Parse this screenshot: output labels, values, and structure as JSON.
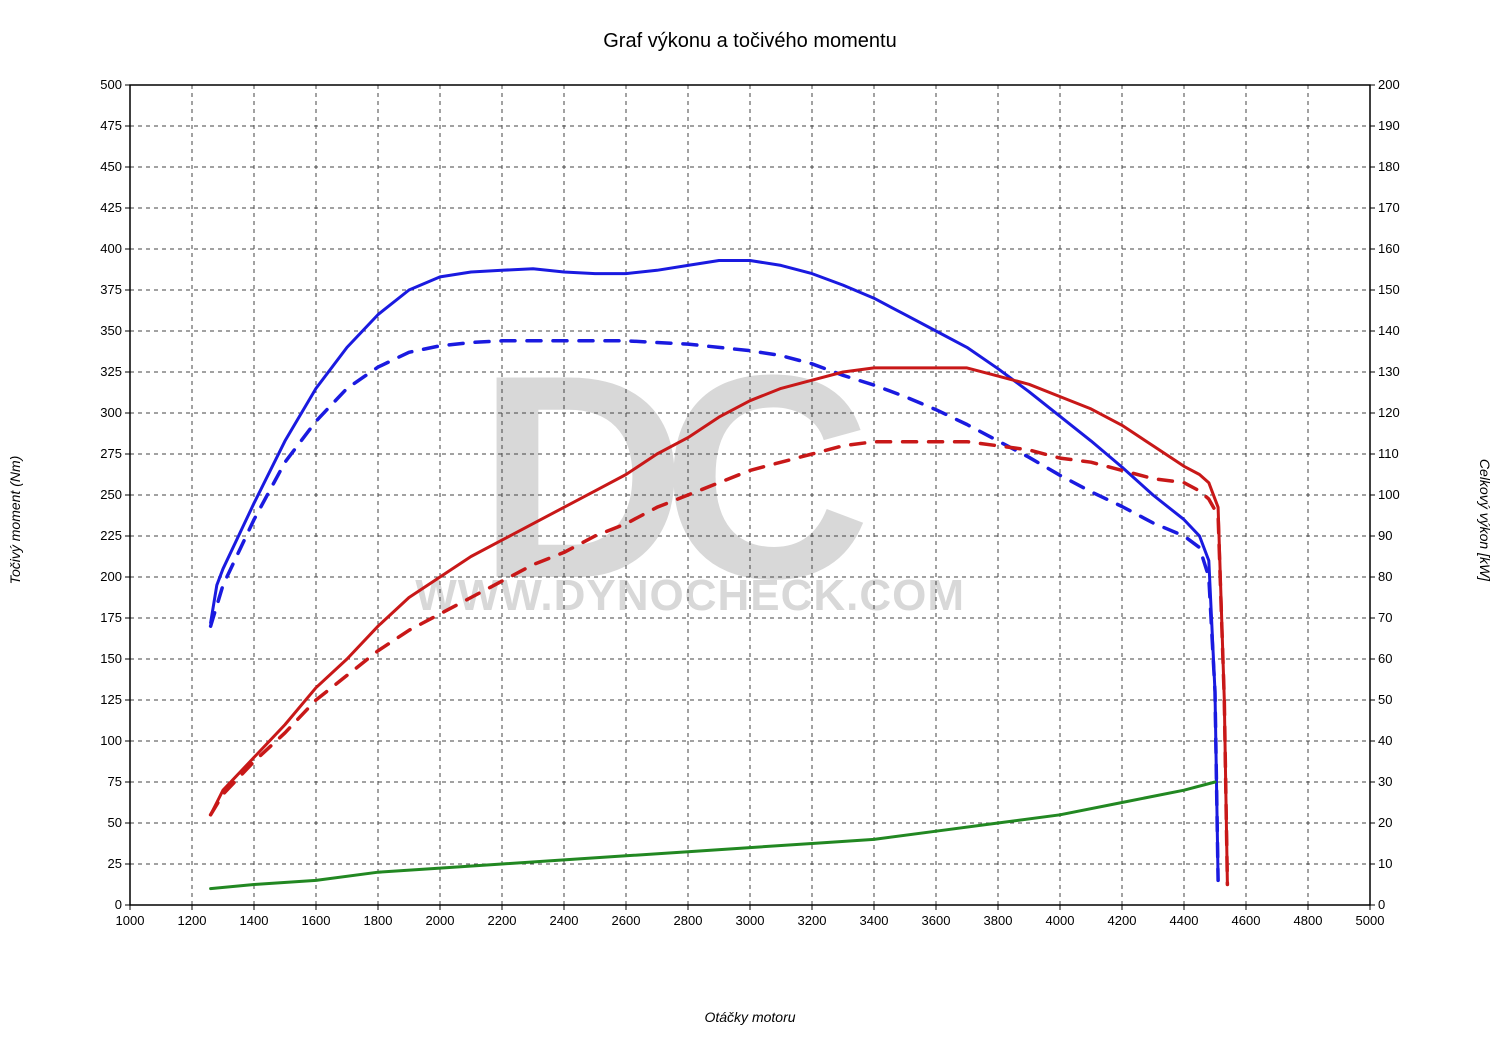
{
  "chart": {
    "type": "line",
    "title": "Graf výkonu a točivého momentu",
    "title_fontsize": 20,
    "background_color": "#ffffff",
    "grid_color": "#444444",
    "grid_dash": "4,4",
    "border_color": "#000000",
    "watermark_logo": "DC",
    "watermark_url": "WWW.DYNOCHECK.COM",
    "watermark_color": "#d8d8d8",
    "x_axis": {
      "label": "Otáčky motoru",
      "label_fontsize": 14,
      "min": 1000,
      "max": 5000,
      "tick_step": 200,
      "ticks": [
        1000,
        1200,
        1400,
        1600,
        1800,
        2000,
        2200,
        2400,
        2600,
        2800,
        3000,
        3200,
        3400,
        3600,
        3800,
        4000,
        4200,
        4400,
        4600,
        4800,
        5000
      ]
    },
    "y_axis_left": {
      "label": "Točivý moment (Nm)",
      "label_fontsize": 14,
      "min": 0,
      "max": 500,
      "tick_step": 25,
      "ticks": [
        0,
        25,
        50,
        75,
        100,
        125,
        150,
        175,
        200,
        225,
        250,
        275,
        300,
        325,
        350,
        375,
        400,
        425,
        450,
        475,
        500
      ]
    },
    "y_axis_right": {
      "label": "Celkový výkon [kW]",
      "label_fontsize": 14,
      "min": 0,
      "max": 200,
      "tick_step": 10,
      "ticks": [
        0,
        10,
        20,
        30,
        40,
        50,
        60,
        70,
        80,
        90,
        100,
        110,
        120,
        130,
        140,
        150,
        160,
        170,
        180,
        190,
        200
      ]
    },
    "series": [
      {
        "name": "torque_tuned",
        "axis": "left",
        "color": "#1a1ae0",
        "line_width": 3,
        "dash": "none",
        "data": [
          [
            1260,
            172
          ],
          [
            1280,
            195
          ],
          [
            1300,
            205
          ],
          [
            1350,
            225
          ],
          [
            1400,
            245
          ],
          [
            1500,
            283
          ],
          [
            1600,
            315
          ],
          [
            1700,
            340
          ],
          [
            1800,
            360
          ],
          [
            1900,
            375
          ],
          [
            2000,
            383
          ],
          [
            2100,
            386
          ],
          [
            2200,
            387
          ],
          [
            2300,
            388
          ],
          [
            2400,
            386
          ],
          [
            2500,
            385
          ],
          [
            2600,
            385
          ],
          [
            2700,
            387
          ],
          [
            2800,
            390
          ],
          [
            2900,
            393
          ],
          [
            3000,
            393
          ],
          [
            3100,
            390
          ],
          [
            3200,
            385
          ],
          [
            3300,
            378
          ],
          [
            3400,
            370
          ],
          [
            3500,
            360
          ],
          [
            3600,
            350
          ],
          [
            3700,
            340
          ],
          [
            3800,
            327
          ],
          [
            3900,
            313
          ],
          [
            4000,
            298
          ],
          [
            4100,
            283
          ],
          [
            4200,
            267
          ],
          [
            4300,
            250
          ],
          [
            4400,
            235
          ],
          [
            4450,
            225
          ],
          [
            4480,
            210
          ],
          [
            4500,
            130
          ],
          [
            4510,
            15
          ]
        ]
      },
      {
        "name": "torque_stock",
        "axis": "left",
        "color": "#1a1ae0",
        "line_width": 3.5,
        "dash": "14,12",
        "data": [
          [
            1260,
            170
          ],
          [
            1300,
            195
          ],
          [
            1350,
            215
          ],
          [
            1400,
            235
          ],
          [
            1500,
            270
          ],
          [
            1600,
            295
          ],
          [
            1700,
            315
          ],
          [
            1800,
            328
          ],
          [
            1900,
            337
          ],
          [
            2000,
            341
          ],
          [
            2100,
            343
          ],
          [
            2200,
            344
          ],
          [
            2300,
            344
          ],
          [
            2400,
            344
          ],
          [
            2500,
            344
          ],
          [
            2600,
            344
          ],
          [
            2700,
            343
          ],
          [
            2800,
            342
          ],
          [
            2900,
            340
          ],
          [
            3000,
            338
          ],
          [
            3100,
            335
          ],
          [
            3200,
            330
          ],
          [
            3300,
            323
          ],
          [
            3400,
            317
          ],
          [
            3500,
            310
          ],
          [
            3600,
            302
          ],
          [
            3700,
            293
          ],
          [
            3800,
            283
          ],
          [
            3900,
            273
          ],
          [
            4000,
            262
          ],
          [
            4100,
            252
          ],
          [
            4200,
            243
          ],
          [
            4300,
            233
          ],
          [
            4400,
            225
          ],
          [
            4450,
            218
          ],
          [
            4480,
            200
          ],
          [
            4500,
            130
          ],
          [
            4510,
            15
          ]
        ]
      },
      {
        "name": "power_tuned",
        "axis": "right",
        "color": "#c81818",
        "line_width": 3,
        "dash": "none",
        "data": [
          [
            1260,
            22
          ],
          [
            1280,
            25
          ],
          [
            1300,
            28
          ],
          [
            1400,
            36
          ],
          [
            1500,
            44
          ],
          [
            1600,
            53
          ],
          [
            1700,
            60
          ],
          [
            1800,
            68
          ],
          [
            1900,
            75
          ],
          [
            2000,
            80
          ],
          [
            2100,
            85
          ],
          [
            2200,
            89
          ],
          [
            2300,
            93
          ],
          [
            2400,
            97
          ],
          [
            2500,
            101
          ],
          [
            2600,
            105
          ],
          [
            2700,
            110
          ],
          [
            2800,
            114
          ],
          [
            2900,
            119
          ],
          [
            3000,
            123
          ],
          [
            3100,
            126
          ],
          [
            3200,
            128
          ],
          [
            3300,
            130
          ],
          [
            3400,
            131
          ],
          [
            3500,
            131
          ],
          [
            3600,
            131
          ],
          [
            3700,
            131
          ],
          [
            3800,
            129
          ],
          [
            3900,
            127
          ],
          [
            4000,
            124
          ],
          [
            4100,
            121
          ],
          [
            4200,
            117
          ],
          [
            4300,
            112
          ],
          [
            4400,
            107
          ],
          [
            4450,
            105
          ],
          [
            4480,
            103
          ],
          [
            4510,
            97
          ],
          [
            4530,
            50
          ],
          [
            4540,
            5
          ]
        ]
      },
      {
        "name": "power_stock",
        "axis": "right",
        "color": "#c81818",
        "line_width": 3.5,
        "dash": "14,12",
        "data": [
          [
            1260,
            22
          ],
          [
            1300,
            27
          ],
          [
            1400,
            35
          ],
          [
            1500,
            42
          ],
          [
            1600,
            50
          ],
          [
            1700,
            56
          ],
          [
            1800,
            62
          ],
          [
            1900,
            67
          ],
          [
            2000,
            71
          ],
          [
            2100,
            75
          ],
          [
            2200,
            79
          ],
          [
            2300,
            83
          ],
          [
            2400,
            86
          ],
          [
            2500,
            90
          ],
          [
            2600,
            93
          ],
          [
            2700,
            97
          ],
          [
            2800,
            100
          ],
          [
            2900,
            103
          ],
          [
            3000,
            106
          ],
          [
            3100,
            108
          ],
          [
            3200,
            110
          ],
          [
            3300,
            112
          ],
          [
            3400,
            113
          ],
          [
            3500,
            113
          ],
          [
            3600,
            113
          ],
          [
            3700,
            113
          ],
          [
            3800,
            112
          ],
          [
            3900,
            111
          ],
          [
            4000,
            109
          ],
          [
            4100,
            108
          ],
          [
            4200,
            106
          ],
          [
            4300,
            104
          ],
          [
            4400,
            103
          ],
          [
            4450,
            101
          ],
          [
            4480,
            99
          ],
          [
            4510,
            95
          ],
          [
            4530,
            50
          ],
          [
            4540,
            5
          ]
        ]
      },
      {
        "name": "power_loss",
        "axis": "right",
        "color": "#228822",
        "line_width": 3,
        "dash": "none",
        "data": [
          [
            1260,
            4
          ],
          [
            1400,
            5
          ],
          [
            1600,
            6
          ],
          [
            1800,
            8
          ],
          [
            2000,
            9
          ],
          [
            2200,
            10
          ],
          [
            2400,
            11
          ],
          [
            2600,
            12
          ],
          [
            2800,
            13
          ],
          [
            3000,
            14
          ],
          [
            3200,
            15
          ],
          [
            3400,
            16
          ],
          [
            3600,
            18
          ],
          [
            3800,
            20
          ],
          [
            4000,
            22
          ],
          [
            4200,
            25
          ],
          [
            4400,
            28
          ],
          [
            4500,
            30
          ]
        ]
      }
    ]
  }
}
